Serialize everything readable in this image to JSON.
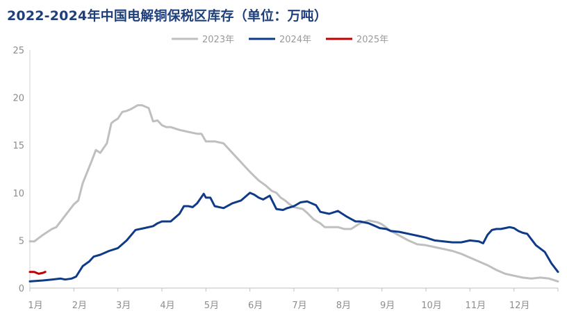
{
  "chart_data": {
    "type": "line",
    "title": "2022-2024年中国电解铜保税区库存（单位：万吨）",
    "xlabel": "",
    "ylabel": "",
    "ylim": [
      0,
      25
    ],
    "yticks": [
      "0",
      "5",
      "10",
      "15",
      "20",
      "25"
    ],
    "categories": [
      "1月",
      "2月",
      "3月",
      "4月",
      "5月",
      "6月",
      "7月",
      "8月",
      "9月",
      "10月",
      "11月",
      "12月"
    ],
    "legend_position": "top-center",
    "grid": false,
    "series": [
      {
        "name": "2023年",
        "color": "#bfbfbf",
        "x": [
          0.0,
          0.1,
          0.3,
          0.5,
          0.6,
          0.8,
          1.0,
          1.1,
          1.2,
          1.4,
          1.5,
          1.6,
          1.75,
          1.85,
          1.9,
          2.0,
          2.1,
          2.2,
          2.3,
          2.45,
          2.55,
          2.7,
          2.8,
          2.9,
          3.0,
          3.1,
          3.2,
          3.4,
          3.6,
          3.8,
          3.9,
          4.0,
          4.2,
          4.4,
          4.6,
          4.8,
          5.0,
          5.2,
          5.35,
          5.5,
          5.6,
          5.7,
          5.8,
          5.9,
          6.0,
          6.1,
          6.2,
          6.3,
          6.45,
          6.6,
          6.7,
          6.8,
          7.0,
          7.15,
          7.3,
          7.5,
          7.7,
          7.9,
          8.0,
          8.2,
          8.4,
          8.6,
          8.8,
          9.0,
          9.2,
          9.4,
          9.6,
          9.8,
          10.0,
          10.2,
          10.4,
          10.6,
          10.8,
          11.0,
          11.2,
          11.4,
          11.6,
          11.8,
          12.0
        ],
        "values": [
          4.9,
          4.9,
          5.6,
          6.2,
          6.4,
          7.6,
          8.8,
          9.2,
          11.0,
          13.3,
          14.5,
          14.2,
          15.2,
          17.3,
          17.5,
          17.8,
          18.5,
          18.6,
          18.8,
          19.2,
          19.2,
          18.9,
          17.5,
          17.6,
          17.1,
          16.9,
          16.9,
          16.6,
          16.4,
          16.2,
          16.2,
          15.4,
          15.4,
          15.2,
          14.2,
          13.2,
          12.2,
          11.3,
          10.8,
          10.2,
          10.0,
          9.5,
          9.2,
          8.8,
          8.5,
          8.4,
          8.3,
          7.9,
          7.2,
          6.8,
          6.4,
          6.4,
          6.4,
          6.2,
          6.2,
          6.8,
          7.1,
          6.9,
          6.7,
          6.0,
          5.5,
          5.0,
          4.6,
          4.5,
          4.3,
          4.1,
          3.9,
          3.6,
          3.2,
          2.8,
          2.4,
          1.9,
          1.5,
          1.3,
          1.1,
          1.0,
          1.1,
          1.0,
          0.7
        ]
      },
      {
        "name": "2024年",
        "color": "#0e3a87",
        "x": [
          0.0,
          0.3,
          0.5,
          0.7,
          0.8,
          0.95,
          1.05,
          1.2,
          1.35,
          1.45,
          1.6,
          1.8,
          2.0,
          2.2,
          2.4,
          2.6,
          2.8,
          2.9,
          3.0,
          3.2,
          3.4,
          3.5,
          3.6,
          3.7,
          3.8,
          3.95,
          4.0,
          4.1,
          4.2,
          4.4,
          4.6,
          4.8,
          5.0,
          5.1,
          5.2,
          5.3,
          5.45,
          5.6,
          5.75,
          5.85,
          6.0,
          6.15,
          6.3,
          6.5,
          6.6,
          6.8,
          7.0,
          7.2,
          7.4,
          7.5,
          7.7,
          7.8,
          7.95,
          8.1,
          8.2,
          8.4,
          8.6,
          8.8,
          9.0,
          9.2,
          9.4,
          9.6,
          9.8,
          10.0,
          10.2,
          10.3,
          10.4,
          10.5,
          10.6,
          10.7,
          10.8,
          10.9,
          11.0,
          11.1,
          11.2,
          11.3,
          11.5,
          11.7,
          11.85,
          12.0
        ],
        "values": [
          0.7,
          0.8,
          0.9,
          1.0,
          0.9,
          1.0,
          1.2,
          2.3,
          2.8,
          3.3,
          3.5,
          3.9,
          4.2,
          5.0,
          6.1,
          6.3,
          6.5,
          6.8,
          7.0,
          7.0,
          7.8,
          8.6,
          8.6,
          8.5,
          8.9,
          9.9,
          9.5,
          9.5,
          8.6,
          8.4,
          8.9,
          9.2,
          10.0,
          9.8,
          9.5,
          9.3,
          9.7,
          8.3,
          8.2,
          8.4,
          8.6,
          9.0,
          9.1,
          8.7,
          8.0,
          7.8,
          8.1,
          7.5,
          7.0,
          7.0,
          6.8,
          6.6,
          6.3,
          6.2,
          6.0,
          5.9,
          5.7,
          5.5,
          5.3,
          5.0,
          4.9,
          4.8,
          4.8,
          5.0,
          4.9,
          4.7,
          5.6,
          6.1,
          6.2,
          6.2,
          6.3,
          6.4,
          6.3,
          6.0,
          5.8,
          5.7,
          4.5,
          3.8,
          2.6,
          1.7
        ]
      },
      {
        "name": "2025年",
        "color": "#c00000",
        "x": [
          0.0,
          0.1,
          0.2,
          0.3,
          0.35
        ],
        "values": [
          1.7,
          1.7,
          1.5,
          1.6,
          1.7
        ]
      }
    ]
  }
}
